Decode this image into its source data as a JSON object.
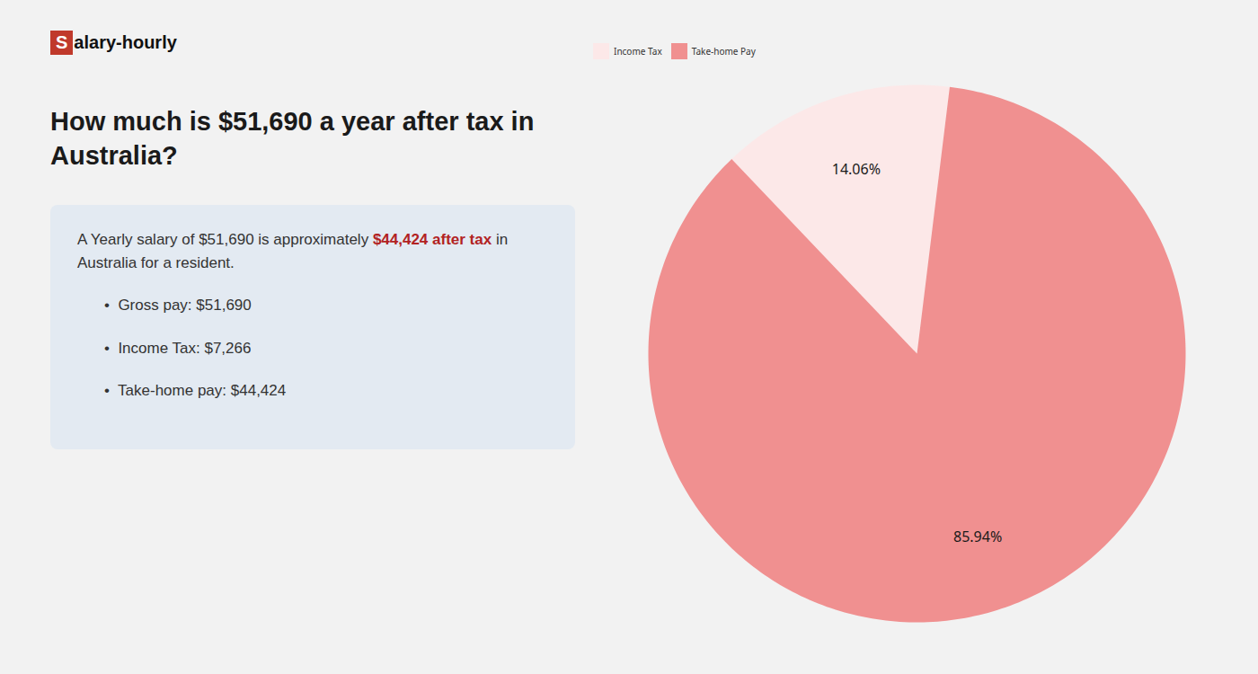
{
  "chart_data": {
    "type": "pie",
    "title": "How much is $51,690 a year after tax in Australia?",
    "categories": [
      "Income Tax",
      "Take-home Pay"
    ],
    "values": [
      14.06,
      85.94
    ],
    "value_labels": [
      "14.06%",
      "85.94%"
    ],
    "colors": [
      "#fce8e8",
      "#f09090"
    ],
    "data_labels": true,
    "legend": "top",
    "annotations": [
      {
        "text": "S",
        "color": "#c0392b"
      },
      {
        "text": "alary-hourly"
      },
      {
        "text": "A Yearly salary of $51,690 is approximately "
      },
      {
        "text": "$44,424 after tax",
        "color": "#b22222"
      },
      {
        "text": " in"
      },
      {
        "text": "Australia for a resident."
      },
      {
        "text": "•  Gross pay: $51,690"
      },
      {
        "text": "•  Income Tax: $7,266"
      },
      {
        "text": "•  Take-home pay: $44,424"
      }
    ]
  }
}
